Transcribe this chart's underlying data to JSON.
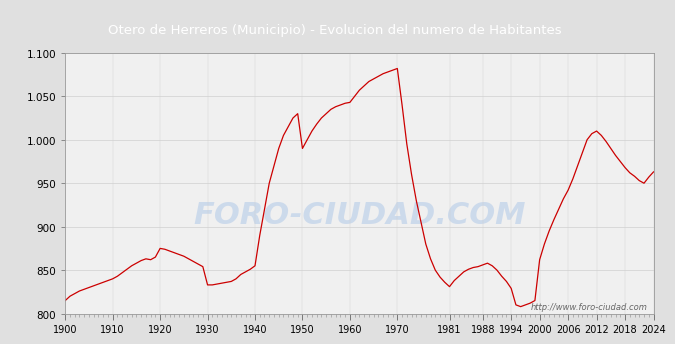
{
  "title": "Otero de Herreros (Municipio) - Evolucion del numero de Habitantes",
  "title_bg": "#4a86c8",
  "title_color": "white",
  "watermark": "http://www.foro-ciudad.com",
  "watermark_big": "FORO-CIUDAD.COM",
  "ylim": [
    800,
    1100
  ],
  "yticks": [
    800,
    850,
    900,
    950,
    1000,
    1050,
    1100
  ],
  "ytick_labels": [
    "800",
    "850",
    "900",
    "950",
    "1.000",
    "1.050",
    "1.100"
  ],
  "xtick_label_positions": [
    1900,
    1910,
    1920,
    1930,
    1940,
    1950,
    1960,
    1970,
    1981,
    1988,
    1994,
    2000,
    2006,
    2012,
    2018,
    2024
  ],
  "xtick_labels": [
    "1900",
    "1910",
    "1920",
    "1930",
    "1940",
    "1950",
    "1960",
    "1970",
    "1981",
    "1988",
    "1994",
    "2000",
    "2006",
    "2012",
    "2018",
    "2024"
  ],
  "line_color": "#cc0000",
  "bg_color": "#e0e0e0",
  "plot_bg": "#f0f0f0",
  "grid_color": "#d0d0d0",
  "data": [
    [
      1900,
      815
    ],
    [
      1901,
      820
    ],
    [
      1902,
      823
    ],
    [
      1903,
      826
    ],
    [
      1904,
      828
    ],
    [
      1905,
      830
    ],
    [
      1906,
      832
    ],
    [
      1907,
      834
    ],
    [
      1908,
      836
    ],
    [
      1909,
      838
    ],
    [
      1910,
      840
    ],
    [
      1911,
      843
    ],
    [
      1912,
      847
    ],
    [
      1913,
      851
    ],
    [
      1914,
      855
    ],
    [
      1915,
      858
    ],
    [
      1916,
      861
    ],
    [
      1917,
      863
    ],
    [
      1918,
      862
    ],
    [
      1919,
      865
    ],
    [
      1920,
      875
    ],
    [
      1921,
      874
    ],
    [
      1922,
      872
    ],
    [
      1923,
      870
    ],
    [
      1924,
      868
    ],
    [
      1925,
      866
    ],
    [
      1926,
      863
    ],
    [
      1927,
      860
    ],
    [
      1928,
      857
    ],
    [
      1929,
      854
    ],
    [
      1930,
      833
    ],
    [
      1931,
      833
    ],
    [
      1932,
      834
    ],
    [
      1933,
      835
    ],
    [
      1934,
      836
    ],
    [
      1935,
      837
    ],
    [
      1936,
      840
    ],
    [
      1937,
      845
    ],
    [
      1938,
      848
    ],
    [
      1939,
      851
    ],
    [
      1940,
      855
    ],
    [
      1941,
      890
    ],
    [
      1942,
      920
    ],
    [
      1943,
      950
    ],
    [
      1944,
      970
    ],
    [
      1945,
      990
    ],
    [
      1946,
      1005
    ],
    [
      1947,
      1015
    ],
    [
      1948,
      1025
    ],
    [
      1949,
      1030
    ],
    [
      1950,
      990
    ],
    [
      1951,
      1000
    ],
    [
      1952,
      1010
    ],
    [
      1953,
      1018
    ],
    [
      1954,
      1025
    ],
    [
      1955,
      1030
    ],
    [
      1956,
      1035
    ],
    [
      1957,
      1038
    ],
    [
      1958,
      1040
    ],
    [
      1959,
      1042
    ],
    [
      1960,
      1043
    ],
    [
      1961,
      1050
    ],
    [
      1962,
      1057
    ],
    [
      1963,
      1062
    ],
    [
      1964,
      1067
    ],
    [
      1965,
      1070
    ],
    [
      1966,
      1073
    ],
    [
      1967,
      1076
    ],
    [
      1968,
      1078
    ],
    [
      1969,
      1080
    ],
    [
      1970,
      1082
    ],
    [
      1971,
      1040
    ],
    [
      1972,
      995
    ],
    [
      1973,
      960
    ],
    [
      1974,
      930
    ],
    [
      1975,
      905
    ],
    [
      1976,
      880
    ],
    [
      1977,
      863
    ],
    [
      1978,
      850
    ],
    [
      1979,
      842
    ],
    [
      1980,
      836
    ],
    [
      1981,
      831
    ],
    [
      1982,
      838
    ],
    [
      1983,
      843
    ],
    [
      1984,
      848
    ],
    [
      1985,
      851
    ],
    [
      1986,
      853
    ],
    [
      1987,
      854
    ],
    [
      1988,
      856
    ],
    [
      1989,
      858
    ],
    [
      1990,
      855
    ],
    [
      1991,
      850
    ],
    [
      1992,
      843
    ],
    [
      1993,
      837
    ],
    [
      1994,
      829
    ],
    [
      1995,
      810
    ],
    [
      1996,
      808
    ],
    [
      1997,
      810
    ],
    [
      1998,
      812
    ],
    [
      1999,
      815
    ],
    [
      2000,
      862
    ],
    [
      2001,
      880
    ],
    [
      2002,
      895
    ],
    [
      2003,
      908
    ],
    [
      2004,
      920
    ],
    [
      2005,
      932
    ],
    [
      2006,
      942
    ],
    [
      2007,
      955
    ],
    [
      2008,
      970
    ],
    [
      2009,
      985
    ],
    [
      2010,
      1000
    ],
    [
      2011,
      1007
    ],
    [
      2012,
      1010
    ],
    [
      2013,
      1005
    ],
    [
      2014,
      998
    ],
    [
      2015,
      990
    ],
    [
      2016,
      982
    ],
    [
      2017,
      975
    ],
    [
      2018,
      968
    ],
    [
      2019,
      962
    ],
    [
      2020,
      958
    ],
    [
      2021,
      953
    ],
    [
      2022,
      950
    ],
    [
      2023,
      957
    ],
    [
      2024,
      963
    ]
  ]
}
